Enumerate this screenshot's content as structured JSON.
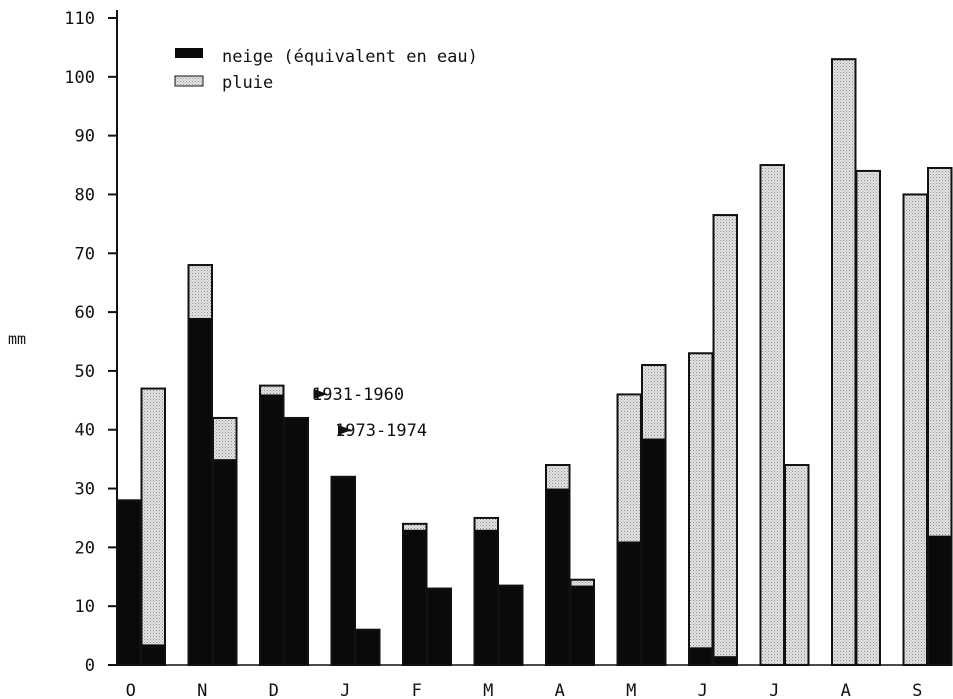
{
  "chart_data": {
    "type": "bar",
    "stacked": true,
    "paired_bars_per_category": true,
    "title": "",
    "xlabel": "",
    "ylabel": "mm",
    "ylim": [
      0,
      110
    ],
    "yticks": [
      0,
      10,
      20,
      30,
      40,
      50,
      60,
      70,
      80,
      90,
      100,
      110
    ],
    "grid": false,
    "legend_position": "top-left",
    "categories": [
      "O",
      "N",
      "D",
      "J",
      "F",
      "M",
      "A",
      "M",
      "J",
      "J",
      "A",
      "S"
    ],
    "periods": [
      "1931-1960",
      "1973-1974"
    ],
    "legend": [
      {
        "key": "snow",
        "label": "neige (équivalent en eau)",
        "color": "#0a0a0a"
      },
      {
        "key": "rain",
        "label": "pluie",
        "color": "#d4d4d4"
      }
    ],
    "series": [
      {
        "period": "1931-1960",
        "snow": [
          28,
          59,
          46,
          32,
          23,
          23,
          30,
          21,
          3,
          0,
          0,
          0
        ],
        "rain": [
          0,
          9,
          1.5,
          0,
          1,
          2,
          4,
          25,
          50,
          85,
          103,
          80
        ]
      },
      {
        "period": "1973-1974",
        "snow": [
          3.5,
          35,
          42,
          6,
          13,
          13.5,
          13.5,
          38.5,
          1.5,
          0,
          0,
          22
        ],
        "rain": [
          43.5,
          7,
          0,
          0,
          0,
          0,
          1,
          12.5,
          75,
          34,
          84,
          62.5
        ]
      }
    ],
    "annotations": [
      {
        "text": "1931-1960",
        "points_to": "D.1931-1960"
      },
      {
        "text": "1973-1974",
        "points_to": "D.1973-1974"
      }
    ]
  }
}
